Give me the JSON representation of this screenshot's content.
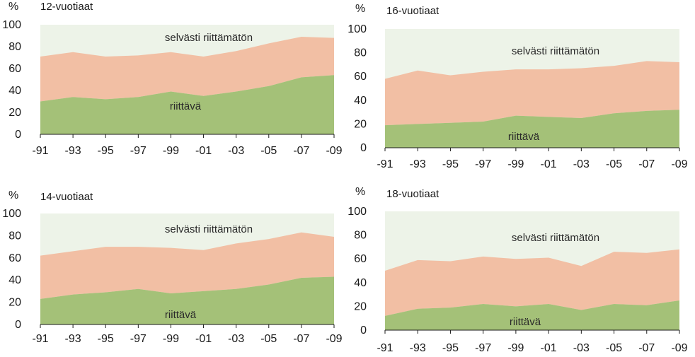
{
  "colors": {
    "background_band": "#edf3e8",
    "middle_band": "#f2bfa4",
    "bottom_band": "#a4c178",
    "axis": "#1a1a1a"
  },
  "chart_data": [
    {
      "type": "area",
      "title": "12-vuotiaat",
      "ylabel": "%",
      "ylim": [
        0,
        100
      ],
      "yticks": [
        "0",
        "20",
        "40",
        "60",
        "80",
        "100"
      ],
      "categories": [
        "-91",
        "-93",
        "-95",
        "-97",
        "-99",
        "-01",
        "-03",
        "-05",
        "-07",
        "-09"
      ],
      "series": [
        {
          "name": "riittävä",
          "values": [
            30,
            34,
            32,
            34,
            39,
            35,
            39,
            44,
            52,
            54
          ]
        },
        {
          "name": "upper boundary",
          "values": [
            71,
            75,
            71,
            72,
            75,
            71,
            76,
            83,
            89,
            88
          ]
        }
      ],
      "annotations": {
        "top": "selvästi riittämätön",
        "bottom": "riittävä"
      }
    },
    {
      "type": "area",
      "title": "16-vuotiaat",
      "ylabel": "%",
      "ylim": [
        0,
        100
      ],
      "yticks": [
        "0",
        "20",
        "40",
        "60",
        "80",
        "100"
      ],
      "categories": [
        "-91",
        "-93",
        "-95",
        "-97",
        "-99",
        "-01",
        "-03",
        "-05",
        "-07",
        "-09"
      ],
      "series": [
        {
          "name": "riittävä",
          "values": [
            19,
            20,
            21,
            22,
            27,
            26,
            25,
            29,
            31,
            32
          ]
        },
        {
          "name": "upper boundary",
          "values": [
            58,
            65,
            61,
            64,
            66,
            66,
            67,
            69,
            73,
            72
          ]
        }
      ],
      "annotations": {
        "top": "selvästi riittämätön",
        "bottom": "riittävä"
      }
    },
    {
      "type": "area",
      "title": "14-vuotiaat",
      "ylabel": "%",
      "ylim": [
        0,
        100
      ],
      "yticks": [
        "0",
        "20",
        "40",
        "60",
        "80",
        "100"
      ],
      "categories": [
        "-91",
        "-93",
        "-95",
        "-97",
        "-99",
        "-01",
        "-03",
        "-05",
        "-07",
        "-09"
      ],
      "series": [
        {
          "name": "riittävä",
          "values": [
            23,
            27,
            29,
            32,
            28,
            30,
            32,
            36,
            42,
            43
          ]
        },
        {
          "name": "upper boundary",
          "values": [
            62,
            66,
            70,
            70,
            69,
            67,
            73,
            77,
            83,
            79
          ]
        }
      ],
      "annotations": {
        "top": "selvästi riittämätön",
        "bottom": "riittävä"
      }
    },
    {
      "type": "area",
      "title": "18-vuotiaat",
      "ylabel": "%",
      "ylim": [
        0,
        100
      ],
      "yticks": [
        "0",
        "20",
        "40",
        "60",
        "80",
        "100"
      ],
      "categories": [
        "-91",
        "-93",
        "-95",
        "-97",
        "-99",
        "-01",
        "-03",
        "-05",
        "-07",
        "-09"
      ],
      "series": [
        {
          "name": "riittävä",
          "values": [
            12,
            18,
            19,
            22,
            20,
            22,
            17,
            22,
            21,
            25
          ]
        },
        {
          "name": "upper boundary",
          "values": [
            50,
            59,
            58,
            62,
            60,
            61,
            54,
            66,
            65,
            68
          ]
        }
      ],
      "annotations": {
        "top": "selvästi riittämätön",
        "bottom": "riittävä"
      }
    }
  ]
}
